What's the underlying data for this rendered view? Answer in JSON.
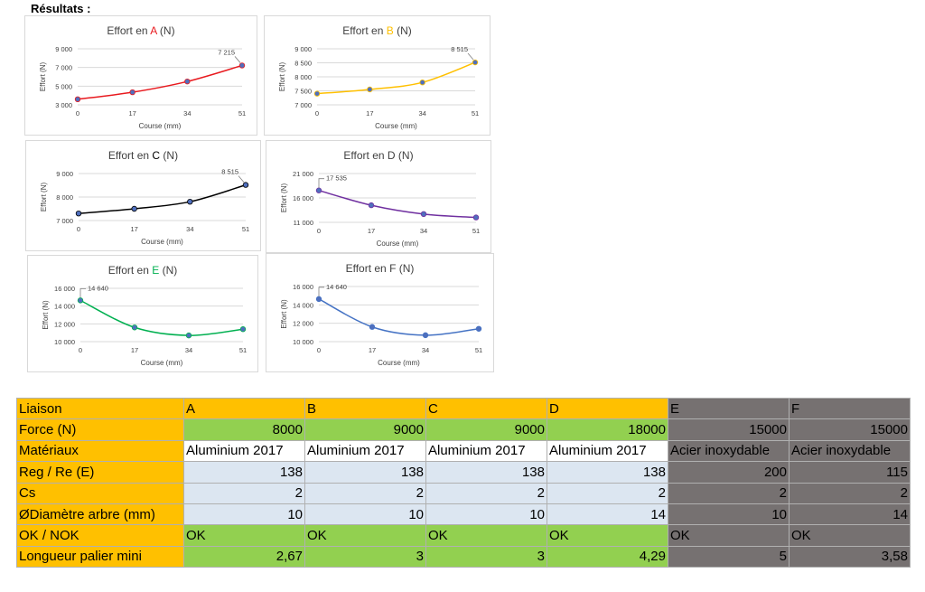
{
  "heading": "Résultats :",
  "colors": {
    "label_bg": "#ffc000",
    "green": "#92d050",
    "light_blue": "#dce6f1",
    "grey": "#767171",
    "white": "#ffffff",
    "series_A": "#e8191e",
    "series_B": "#ffc000",
    "series_C": "#000000",
    "series_D": "#7030a0",
    "series_E": "#00b050",
    "series_F": "#4472c4",
    "marker_fill": "#4f6fbd"
  },
  "chart_data": [
    {
      "type": "line",
      "title_prefix": "Effort en ",
      "title_letter": "A",
      "title_suffix": " (N)",
      "letter_color": "#e8191e",
      "series_color": "#e8191e",
      "xlabel": "Course (mm)",
      "ylabel": "Effort (N)",
      "categories": [
        "0",
        "17",
        "34",
        "51"
      ],
      "values": [
        3600,
        4350,
        5500,
        7215
      ],
      "ylim": [
        3000,
        9000
      ],
      "yticks": [
        3000,
        5000,
        7000,
        9000
      ],
      "ytick_labels": [
        "3 000",
        "5 000",
        "7 000",
        "9 000"
      ],
      "data_label": "7 215",
      "data_label_index": 3,
      "grid": true
    },
    {
      "type": "line",
      "title_prefix": "Effort en ",
      "title_letter": "B",
      "title_suffix": " (N)",
      "letter_color": "#ffc000",
      "series_color": "#ffc000",
      "xlabel": "Course (mm)",
      "ylabel": "Effort (N)",
      "categories": [
        "0",
        "17",
        "34",
        "51"
      ],
      "values": [
        7400,
        7550,
        7800,
        8515
      ],
      "ylim": [
        7000,
        9000
      ],
      "yticks": [
        7000,
        7500,
        8000,
        8500,
        9000
      ],
      "ytick_labels": [
        "7 000",
        "7 500",
        "8 000",
        "8 500",
        "9 000"
      ],
      "data_label": "8 515",
      "data_label_index": 3,
      "grid": true
    },
    {
      "type": "line",
      "title_prefix": "Effort en ",
      "title_letter": "C",
      "title_suffix": " (N)",
      "letter_color": "#000000",
      "series_color": "#000000",
      "xlabel": "Course (mm)",
      "ylabel": "Effort (N)",
      "categories": [
        "0",
        "17",
        "34",
        "51"
      ],
      "values": [
        7300,
        7500,
        7800,
        8515
      ],
      "ylim": [
        7000,
        9000
      ],
      "yticks": [
        7000,
        8000,
        9000
      ],
      "ytick_labels": [
        "7 000",
        "8 000",
        "9 000"
      ],
      "data_label": "8 515",
      "data_label_index": 3,
      "grid": true
    },
    {
      "type": "line",
      "title_prefix": "Effort en ",
      "title_letter": "D",
      "title_suffix": " (N)",
      "letter_color": "#404040",
      "series_color": "#7030a0",
      "xlabel": "Course (mm)",
      "ylabel": "Effort (N)",
      "categories": [
        "0",
        "17",
        "34",
        "51"
      ],
      "values": [
        17535,
        14500,
        12700,
        12000
      ],
      "ylim": [
        11000,
        21000
      ],
      "yticks": [
        11000,
        16000,
        21000
      ],
      "ytick_labels": [
        "11 000",
        "16 000",
        "21 000"
      ],
      "data_label": "17 535",
      "data_label_index": 0,
      "grid": true
    },
    {
      "type": "line",
      "title_prefix": "Effort en ",
      "title_letter": "E",
      "title_suffix": " (N)",
      "letter_color": "#00b050",
      "series_color": "#00b050",
      "xlabel": "Course (mm)",
      "ylabel": "Effort (N)",
      "categories": [
        "0",
        "17",
        "34",
        "51"
      ],
      "values": [
        14640,
        11600,
        10700,
        11400
      ],
      "ylim": [
        10000,
        16000
      ],
      "yticks": [
        10000,
        12000,
        14000,
        16000
      ],
      "ytick_labels": [
        "10 000",
        "12 000",
        "14 000",
        "16 000"
      ],
      "data_label": "14 640",
      "data_label_index": 0,
      "grid": true
    },
    {
      "type": "line",
      "title_prefix": "Effort en ",
      "title_letter": "F",
      "title_suffix": " (N)",
      "letter_color": "#404040",
      "series_color": "#4472c4",
      "xlabel": "Course (mm)",
      "ylabel": "Effort (N)",
      "categories": [
        "0",
        "17",
        "34",
        "51"
      ],
      "values": [
        14640,
        11600,
        10700,
        11400
      ],
      "ylim": [
        10000,
        16000
      ],
      "yticks": [
        10000,
        12000,
        14000,
        16000
      ],
      "ytick_labels": [
        "10 000",
        "12 000",
        "14 000",
        "16 000"
      ],
      "data_label": "14 640",
      "data_label_index": 0,
      "grid": true
    }
  ],
  "table": {
    "rows": [
      {
        "label": "Liaison",
        "cells": [
          {
            "text": "A",
            "bg": "#ffc000",
            "align": "left"
          },
          {
            "text": "B",
            "bg": "#ffc000",
            "align": "left"
          },
          {
            "text": "C",
            "bg": "#ffc000",
            "align": "left"
          },
          {
            "text": "D",
            "bg": "#ffc000",
            "align": "left"
          },
          {
            "text": "E",
            "bg": "#767171",
            "align": "left"
          },
          {
            "text": "F",
            "bg": "#767171",
            "align": "left"
          }
        ]
      },
      {
        "label": "Force (N)",
        "cells": [
          {
            "text": "8000",
            "bg": "#92d050",
            "align": "right"
          },
          {
            "text": "9000",
            "bg": "#92d050",
            "align": "right"
          },
          {
            "text": "9000",
            "bg": "#92d050",
            "align": "right"
          },
          {
            "text": "18000",
            "bg": "#92d050",
            "align": "right"
          },
          {
            "text": "15000",
            "bg": "#767171",
            "align": "right"
          },
          {
            "text": "15000",
            "bg": "#767171",
            "align": "right"
          }
        ]
      },
      {
        "label": "Matériaux",
        "cells": [
          {
            "text": "Aluminium 2017",
            "bg": "#ffffff",
            "align": "left"
          },
          {
            "text": "Aluminium 2017",
            "bg": "#ffffff",
            "align": "left"
          },
          {
            "text": "Aluminium 2017",
            "bg": "#ffffff",
            "align": "left"
          },
          {
            "text": "Aluminium 2017",
            "bg": "#ffffff",
            "align": "left"
          },
          {
            "text": "Acier inoxydable",
            "bg": "#767171",
            "align": "left"
          },
          {
            "text": "Acier inoxydable",
            "bg": "#767171",
            "align": "left"
          }
        ]
      },
      {
        "label": "Reg / Re (E)",
        "cells": [
          {
            "text": "138",
            "bg": "#dce6f1",
            "align": "right"
          },
          {
            "text": "138",
            "bg": "#dce6f1",
            "align": "right"
          },
          {
            "text": "138",
            "bg": "#dce6f1",
            "align": "right"
          },
          {
            "text": "138",
            "bg": "#dce6f1",
            "align": "right"
          },
          {
            "text": "200",
            "bg": "#767171",
            "align": "right"
          },
          {
            "text": "115",
            "bg": "#767171",
            "align": "right"
          }
        ]
      },
      {
        "label": "Cs",
        "cells": [
          {
            "text": "2",
            "bg": "#dce6f1",
            "align": "right"
          },
          {
            "text": "2",
            "bg": "#dce6f1",
            "align": "right"
          },
          {
            "text": "2",
            "bg": "#dce6f1",
            "align": "right"
          },
          {
            "text": "2",
            "bg": "#dce6f1",
            "align": "right"
          },
          {
            "text": "2",
            "bg": "#767171",
            "align": "right"
          },
          {
            "text": "2",
            "bg": "#767171",
            "align": "right"
          }
        ]
      },
      {
        "label": "ØDiamètre arbre (mm)",
        "cells": [
          {
            "text": "10",
            "bg": "#dce6f1",
            "align": "right"
          },
          {
            "text": "10",
            "bg": "#dce6f1",
            "align": "right"
          },
          {
            "text": "10",
            "bg": "#dce6f1",
            "align": "right"
          },
          {
            "text": "14",
            "bg": "#dce6f1",
            "align": "right"
          },
          {
            "text": "10",
            "bg": "#767171",
            "align": "right"
          },
          {
            "text": "14",
            "bg": "#767171",
            "align": "right"
          }
        ]
      },
      {
        "label": "OK / NOK",
        "cells": [
          {
            "text": "OK",
            "bg": "#92d050",
            "align": "left"
          },
          {
            "text": "OK",
            "bg": "#92d050",
            "align": "left"
          },
          {
            "text": "OK",
            "bg": "#92d050",
            "align": "left"
          },
          {
            "text": "OK",
            "bg": "#92d050",
            "align": "left"
          },
          {
            "text": "OK",
            "bg": "#767171",
            "align": "left"
          },
          {
            "text": "OK",
            "bg": "#767171",
            "align": "left"
          }
        ]
      },
      {
        "label": "Longueur palier mini",
        "cells": [
          {
            "text": "2,67",
            "bg": "#92d050",
            "align": "right"
          },
          {
            "text": "3",
            "bg": "#92d050",
            "align": "right"
          },
          {
            "text": "3",
            "bg": "#92d050",
            "align": "right"
          },
          {
            "text": "4,29",
            "bg": "#92d050",
            "align": "right"
          },
          {
            "text": "5",
            "bg": "#767171",
            "align": "right"
          },
          {
            "text": "3,58",
            "bg": "#767171",
            "align": "right"
          }
        ]
      }
    ]
  }
}
